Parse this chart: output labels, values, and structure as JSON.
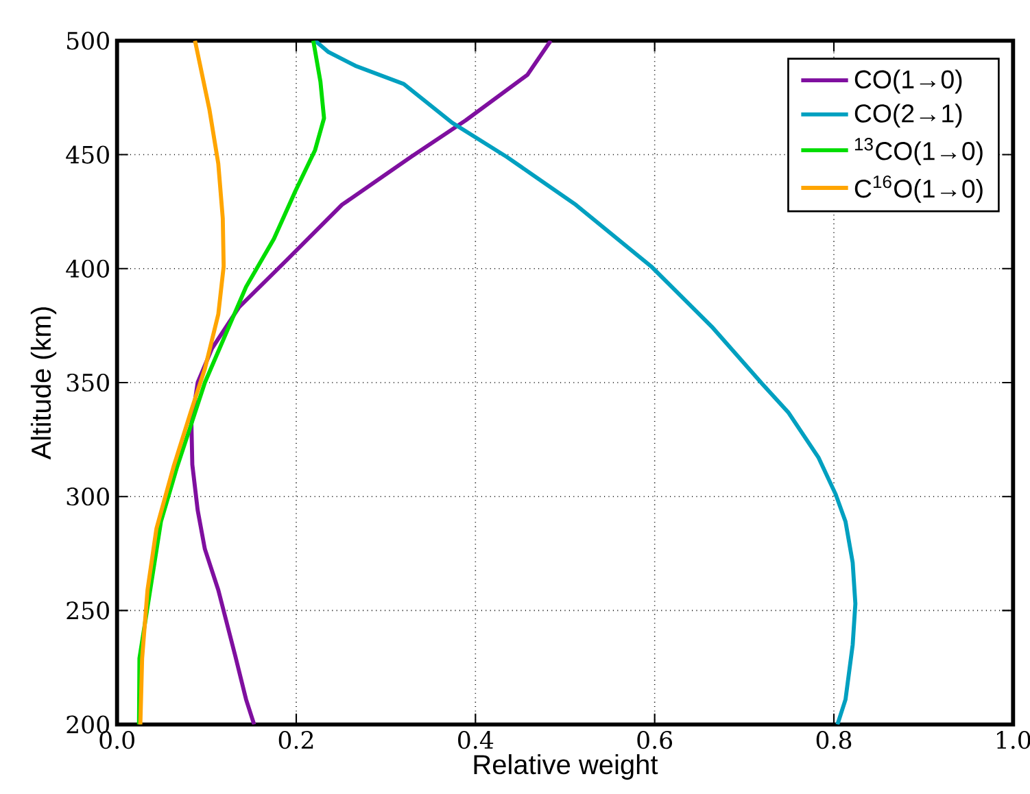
{
  "chart_data": {
    "type": "line",
    "xlabel": "Relative weight",
    "ylabel": "Altitude (km)",
    "xlim": [
      0,
      1
    ],
    "ylim": [
      200,
      500
    ],
    "xticks": [
      {
        "value": 0,
        "label": "0.0"
      },
      {
        "value": 0.2,
        "label": "0.2"
      },
      {
        "value": 0.4,
        "label": "0.4"
      },
      {
        "value": 0.6,
        "label": "0.6"
      },
      {
        "value": 0.8,
        "label": "0.8"
      },
      {
        "value": 1,
        "label": "1.0"
      }
    ],
    "yticks": [
      200,
      250,
      300,
      350,
      400,
      450,
      500
    ],
    "grid": true,
    "legend": "top right",
    "marker": "none",
    "line_style": "solid",
    "series": [
      {
        "name": "CO(1→0)",
        "color": "#7f0f9f",
        "x": [
          0.153,
          0.144,
          0.132,
          0.113,
          0.098,
          0.09,
          0.084,
          0.083,
          0.09,
          0.106,
          0.136,
          0.19,
          0.251,
          0.328,
          0.389,
          0.458,
          0.484
        ],
        "values": [
          200,
          211,
          230,
          259,
          277,
          294,
          314,
          332,
          350,
          365,
          383,
          404,
          428,
          449,
          465,
          485,
          500
        ]
      },
      {
        "name": "CO(2→1)",
        "color": "#00a0c0",
        "x": [
          0.804,
          0.813,
          0.821,
          0.824,
          0.821,
          0.813,
          0.802,
          0.783,
          0.749,
          0.721,
          0.665,
          0.596,
          0.512,
          0.435,
          0.374,
          0.32,
          0.266,
          0.236,
          0.221
        ],
        "values": [
          200,
          211,
          235,
          253,
          271,
          289,
          301,
          317,
          337,
          349,
          374,
          401,
          428,
          449,
          464,
          481,
          489,
          495,
          500
        ]
      },
      {
        "name": "$^{13}$CO(1→0)",
        "color": "#00dd00",
        "x": [
          0.0245,
          0.025,
          0.037,
          0.049,
          0.067,
          0.083,
          0.098,
          0.121,
          0.144,
          0.175,
          0.199,
          0.221,
          0.231,
          0.227,
          0.219
        ],
        "values": [
          200,
          229,
          259,
          289,
          313,
          332,
          350,
          371,
          392,
          413,
          434,
          452,
          466,
          482,
          500
        ]
      },
      {
        "name": "C$^{16}$O(1→0)",
        "color": "#ffa500",
        "x": [
          0.026,
          0.028,
          0.034,
          0.044,
          0.063,
          0.083,
          0.098,
          0.113,
          0.119,
          0.118,
          0.113,
          0.103,
          0.087
        ],
        "values": [
          200,
          229,
          259,
          286,
          313,
          338,
          356,
          380,
          401,
          422,
          446,
          470,
          500
        ]
      }
    ]
  }
}
